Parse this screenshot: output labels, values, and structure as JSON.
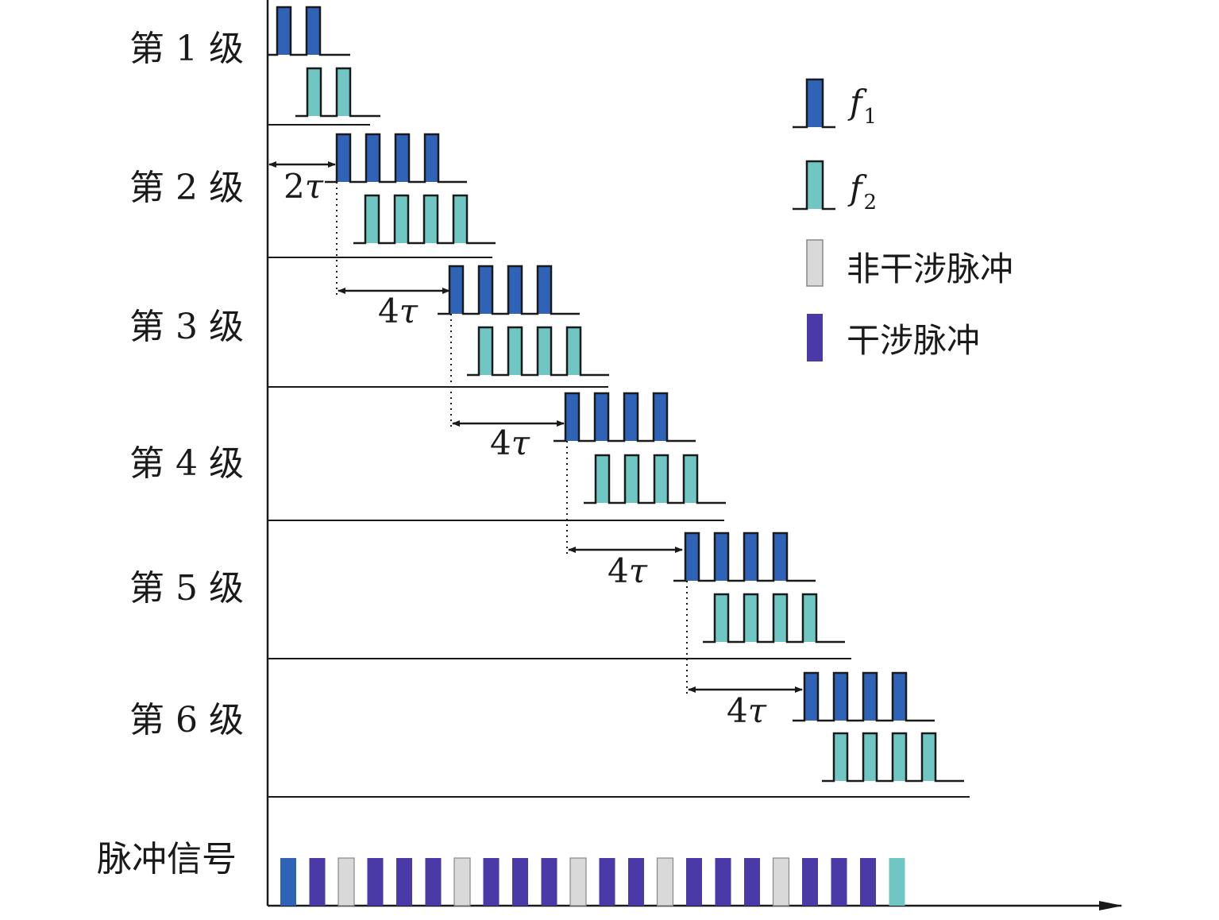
{
  "stages": [
    {
      "label": "第 1 级",
      "pulses_f1": 2,
      "pulses_f2": 2
    },
    {
      "label": "第 2 级",
      "pulses_f1": 4,
      "pulses_f2": 4
    },
    {
      "label": "第 3 级",
      "pulses_f1": 4,
      "pulses_f2": 4
    },
    {
      "label": "第 4 级",
      "pulses_f1": 4,
      "pulses_f2": 4
    },
    {
      "label": "第 5 级",
      "pulses_f1": 4,
      "pulses_f2": 4
    },
    {
      "label": "第 6 级",
      "pulses_f1": 4,
      "pulses_f2": 4
    }
  ],
  "delays": [
    {
      "coef": "2",
      "symbol": "τ"
    },
    {
      "coef": "4",
      "symbol": "τ"
    },
    {
      "coef": "4",
      "symbol": "τ"
    },
    {
      "coef": "4",
      "symbol": "τ"
    },
    {
      "coef": "4",
      "symbol": "τ"
    }
  ],
  "legend": {
    "f1": {
      "symbol": "f",
      "sub": "1"
    },
    "f2": {
      "symbol": "f",
      "sub": "2"
    },
    "non_interference": "非干涉脉冲",
    "interference": "干涉脉冲"
  },
  "pulse_signal": {
    "label": "脉冲信号",
    "sequence": [
      "f1",
      "int",
      "non",
      "int",
      "int",
      "int",
      "non",
      "int",
      "int",
      "int",
      "non",
      "int",
      "int",
      "non",
      "int",
      "int",
      "int",
      "non",
      "int",
      "int",
      "int",
      "f2"
    ]
  },
  "colors": {
    "f1": "#2f63b8",
    "f2": "#6fc6c2",
    "non_interference": "#d9d9d9",
    "interference": "#4a3aa8",
    "line": "#1a1a1a"
  }
}
